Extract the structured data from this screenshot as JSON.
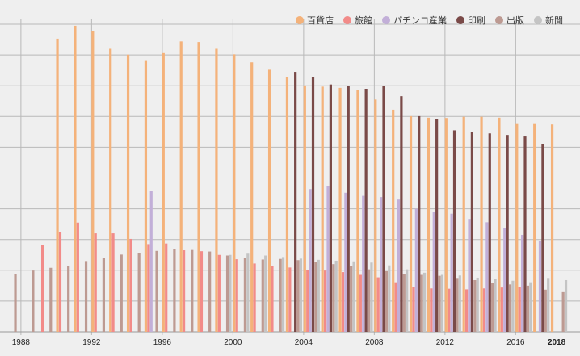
{
  "chart_data": {
    "type": "bar",
    "title": "",
    "xlabel": "",
    "ylabel": "",
    "ylim": [
      0,
      100
    ],
    "grid": true,
    "legend_position": "top-right",
    "x_ticks": [
      "1988",
      "1992",
      "1996",
      "2000",
      "2004",
      "2008",
      "2012",
      "2016",
      "2018"
    ],
    "categories": [
      1987,
      1988,
      1989,
      1990,
      1991,
      1992,
      1993,
      1994,
      1995,
      1996,
      1997,
      1998,
      1999,
      2000,
      2001,
      2002,
      2003,
      2004,
      2005,
      2006,
      2007,
      2008,
      2009,
      2010,
      2011,
      2012,
      2013,
      2014,
      2015,
      2016,
      2017,
      2018
    ],
    "series": [
      {
        "name": "百貨店",
        "color": "#f4b27a",
        "values": [
          null,
          null,
          null,
          95.3,
          99.5,
          97.7,
          92,
          90.1,
          88.3,
          90.6,
          94.4,
          94.2,
          92,
          90.2,
          87.6,
          85.2,
          82.7,
          80.1,
          79.7,
          79.3,
          78.7,
          75.5,
          72.2,
          70.1,
          69.6,
          69.5,
          69.9,
          69.9,
          69.6,
          67.8,
          67.8,
          67.4
        ]
      },
      {
        "name": "旅館",
        "color": "#f28b89",
        "values": [
          null,
          null,
          28.2,
          32.4,
          35.5,
          32,
          32,
          30.2,
          28.5,
          28.7,
          26.5,
          26.2,
          25,
          23.6,
          22.2,
          21.4,
          20.9,
          20.2,
          19.9,
          19.4,
          18.5,
          17.7,
          16.1,
          14.5,
          14.1,
          14,
          13.8,
          14.1,
          14.4,
          14.5,
          null,
          null
        ]
      },
      {
        "name": "パチンコ産業",
        "color": "#c2afd8",
        "values": [
          null,
          null,
          null,
          null,
          null,
          null,
          null,
          null,
          45.7,
          null,
          null,
          null,
          null,
          null,
          null,
          null,
          null,
          46.4,
          47.3,
          45.2,
          44.2,
          43.8,
          43,
          40,
          38.9,
          38.4,
          36.7,
          35.6,
          33.6,
          31.5,
          29.5,
          null
        ]
      },
      {
        "name": "印刷",
        "color": "#7a4a48",
        "values": [
          null,
          null,
          null,
          null,
          null,
          null,
          null,
          null,
          null,
          null,
          null,
          null,
          null,
          null,
          null,
          null,
          84.5,
          82.7,
          80.4,
          79.9,
          79,
          80,
          76.6,
          70.1,
          69.2,
          65.5,
          65,
          64.5,
          64,
          63.5,
          61.1,
          null
        ]
      },
      {
        "name": "出版",
        "color": "#bd9a92",
        "values": [
          18.7,
          19.9,
          20.8,
          21.4,
          23,
          23.9,
          25.1,
          25.7,
          26.3,
          26.8,
          26.6,
          26.1,
          24.8,
          24.1,
          23.5,
          23.7,
          23.3,
          22.6,
          22,
          21.5,
          20.3,
          19.7,
          18.8,
          18.5,
          18.2,
          17.5,
          16.8,
          16,
          15.4,
          15,
          13.7,
          12.9
        ]
      },
      {
        "name": "新聞",
        "color": "#c4c4c4",
        "values": [
          null,
          null,
          null,
          null,
          null,
          null,
          null,
          null,
          null,
          null,
          null,
          null,
          25,
          25.4,
          24.8,
          24.3,
          23.8,
          23.4,
          23.1,
          22.9,
          22.5,
          21.6,
          20.3,
          19.2,
          18.5,
          18.3,
          17.6,
          17.2,
          16.6,
          16.1,
          17.5,
          16.8
        ]
      }
    ]
  }
}
